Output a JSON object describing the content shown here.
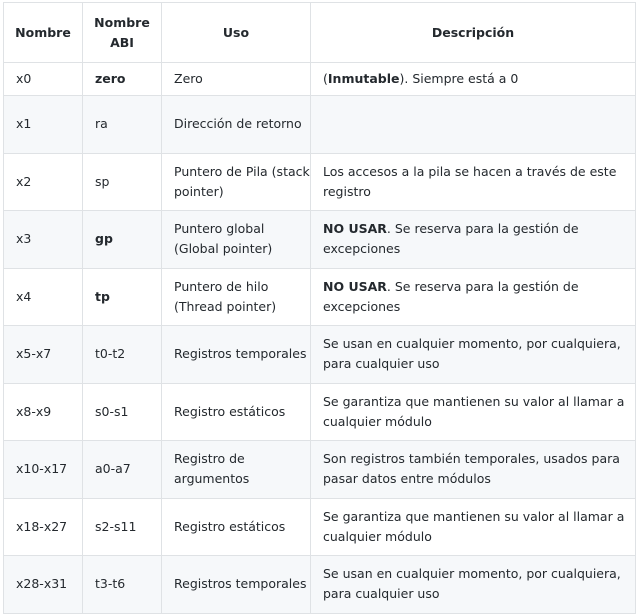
{
  "headers": [
    "Nombre",
    "Nombre ABI",
    "Uso",
    "Descripción"
  ],
  "rows": [
    {
      "name": "x0",
      "abi": "zero",
      "abi_bold": true,
      "uso": "Zero",
      "desc_bold": "Inmutable",
      "desc_pre": "(",
      "desc": "). Siempre está a 0"
    },
    {
      "name": "x1",
      "abi": "ra",
      "uso": "Dirección de retorno",
      "desc": ""
    },
    {
      "name": "x2",
      "abi": "sp",
      "uso": "Puntero de Pila (stack pointer)",
      "desc": "Los accesos a la pila se hacen a través de este registro"
    },
    {
      "name": "x3",
      "abi": "gp",
      "abi_bold": true,
      "uso": "Puntero global (Global pointer)",
      "desc_bold": "NO USAR",
      "desc": ". Se reserva para la gestión de excepciones"
    },
    {
      "name": "x4",
      "abi": "tp",
      "abi_bold": true,
      "uso": "Puntero de hilo (Thread pointer)",
      "desc_bold": "NO USAR",
      "desc": ". Se reserva para la gestión de excepciones"
    },
    {
      "name": "x5-x7",
      "abi": "t0-t2",
      "uso": "Registros temporales",
      "desc": "Se usan en cualquier momento, por cualquiera, para cualquier uso"
    },
    {
      "name": "x8-x9",
      "abi": "s0-s1",
      "uso": "Registro estáticos",
      "desc": "Se garantiza que mantienen su valor al llamar a cualquier módulo"
    },
    {
      "name": "x10-x17",
      "abi": "a0-a7",
      "uso": "Registro de argumentos",
      "desc": "Son registros también temporales, usados para pasar datos entre módulos"
    },
    {
      "name": "x18-x27",
      "abi": "s2-s11",
      "uso": "Registro estáticos",
      "desc": "Se garantiza que mantienen su valor al llamar a cualquier módulo"
    },
    {
      "name": "x28-x31",
      "abi": "t3-t6",
      "uso": "Registros temporales",
      "desc": "Se usan en cualquier momento, por cualquiera, para cualquier uso"
    }
  ]
}
